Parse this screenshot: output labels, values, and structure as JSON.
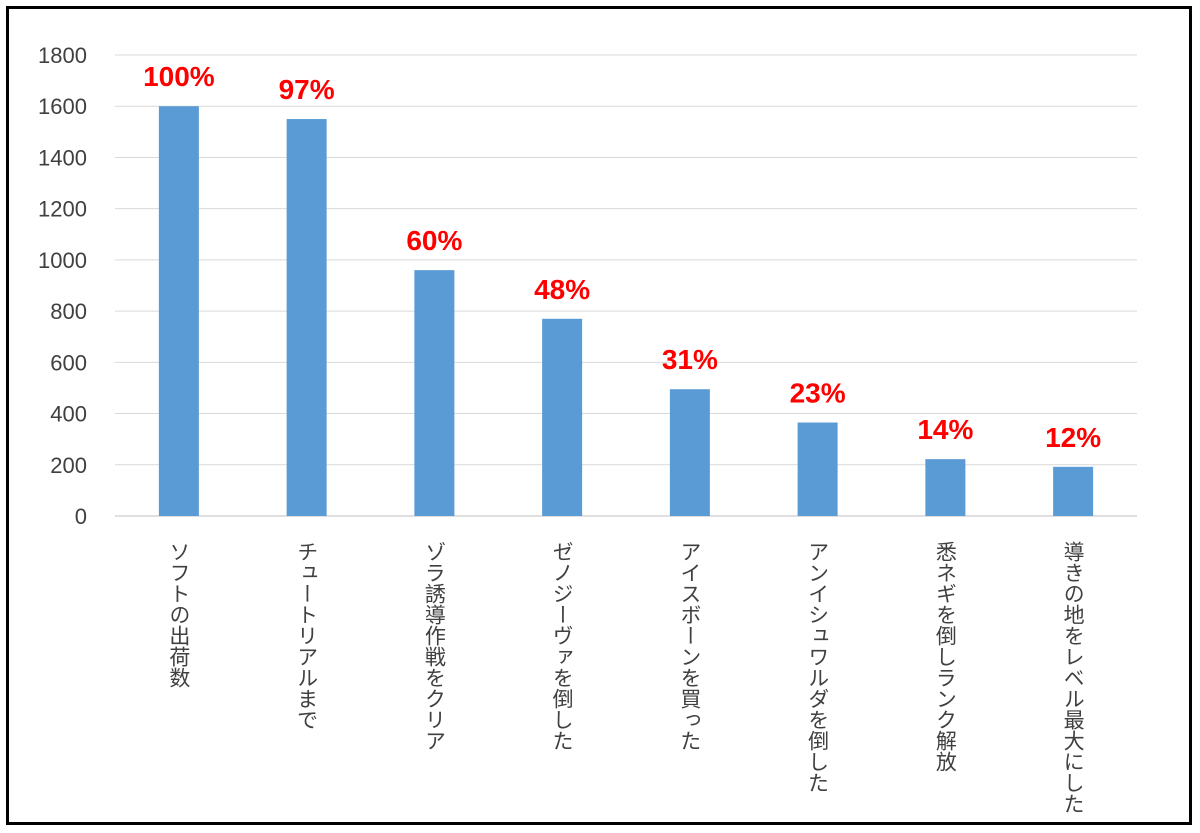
{
  "chart_data": {
    "type": "bar",
    "categories": [
      "ソフトの出荷数",
      "チュートリアルまで",
      "ゾラ誘導作戦をクリア",
      "ゼノジーヴァを倒した",
      "アイスボーンを買った",
      "アンイシュワルダを倒した",
      "悉ネギを倒しランク解放",
      "導きの地をレベル最大にした"
    ],
    "values": [
      1600,
      1550,
      960,
      770,
      495,
      365,
      222,
      192
    ],
    "data_labels": [
      "100%",
      "97%",
      "60%",
      "48%",
      "31%",
      "23%",
      "14%",
      "12%"
    ],
    "yticks": [
      "0",
      "200",
      "400",
      "600",
      "800",
      "1000",
      "1200",
      "1400",
      "1600",
      "1800"
    ],
    "ylim": [
      0,
      1800
    ],
    "grid": true,
    "legend": "none",
    "title": "",
    "xlabel": "",
    "ylabel": ""
  },
  "colors": {
    "bar": "#5b9bd5",
    "label": "#ff0000",
    "grid": "#d9d9d9",
    "axis": "#bfbfbf",
    "text": "#404040"
  }
}
